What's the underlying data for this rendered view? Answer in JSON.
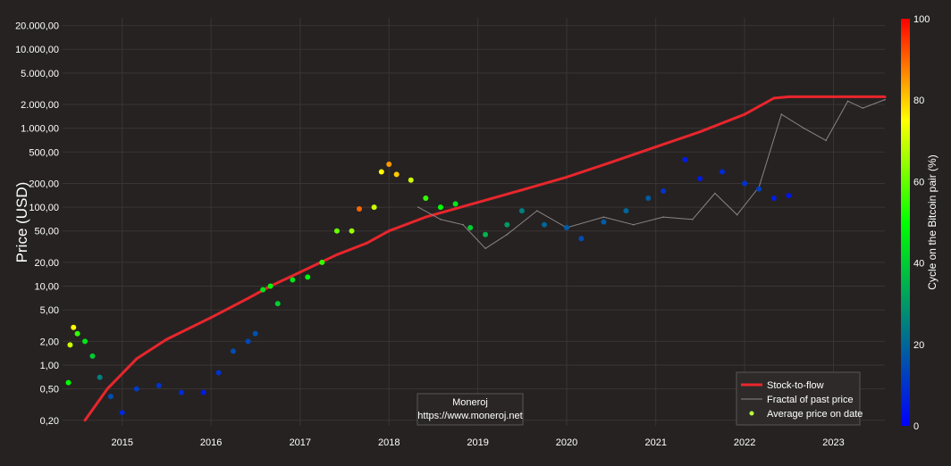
{
  "chart_data": {
    "type": "scatter",
    "title": "",
    "xlabel": "",
    "ylabel": "Price (USD)",
    "y_scale": "log",
    "ylim": [
      0.17,
      25000
    ],
    "xlim": [
      "2014-05-01",
      "2023-07-31"
    ],
    "x_ticks": [
      "2015",
      "2016",
      "2017",
      "2018",
      "2019",
      "2020",
      "2021",
      "2022",
      "2023"
    ],
    "y_ticks": [
      {
        "v": 0.2,
        "label": "0,20"
      },
      {
        "v": 0.5,
        "label": "0,50"
      },
      {
        "v": 1,
        "label": "1,00"
      },
      {
        "v": 2,
        "label": "2,00"
      },
      {
        "v": 5,
        "label": "5,00"
      },
      {
        "v": 10,
        "label": "10,00"
      },
      {
        "v": 20,
        "label": "20,00"
      },
      {
        "v": 50,
        "label": "50,00"
      },
      {
        "v": 100,
        "label": "100,00"
      },
      {
        "v": 200,
        "label": "200,00"
      },
      {
        "v": 500,
        "label": "500,00"
      },
      {
        "v": 1000,
        "label": "1.000,00"
      },
      {
        "v": 2000,
        "label": "2.000,00"
      },
      {
        "v": 5000,
        "label": "5.000,00"
      },
      {
        "v": 10000,
        "label": "10.000,00"
      },
      {
        "v": 20000,
        "label": "20.000,00"
      }
    ],
    "grid": true,
    "legend_position": "bottom-right",
    "colorbar": {
      "title": "Cycle on the Bitcoin pair (%)",
      "range": [
        0,
        100
      ],
      "ticks": [
        0,
        20,
        40,
        60,
        80,
        100
      ],
      "colors": [
        "#0000ff",
        "#008080",
        "#00ff00",
        "#ffff00",
        "#ff0000"
      ]
    },
    "annotation": {
      "line1": "Moneroj",
      "line2": "https://www.moneroj.net"
    },
    "series": [
      {
        "name": "Stock-to-flow",
        "style": "line",
        "color": "#e8262c",
        "points": [
          [
            "2014-08-01",
            0.2
          ],
          [
            "2014-11-01",
            0.5
          ],
          [
            "2015-03-01",
            1.2
          ],
          [
            "2015-07-01",
            2.1
          ],
          [
            "2016-01-01",
            4.0
          ],
          [
            "2016-06-01",
            7.0
          ],
          [
            "2016-09-01",
            10
          ],
          [
            "2017-01-01",
            15
          ],
          [
            "2017-06-01",
            25
          ],
          [
            "2017-10-01",
            35
          ],
          [
            "2018-01-01",
            50
          ],
          [
            "2018-06-01",
            75
          ],
          [
            "2019-01-01",
            115
          ],
          [
            "2019-07-01",
            165
          ],
          [
            "2020-01-01",
            240
          ],
          [
            "2020-07-01",
            370
          ],
          [
            "2021-01-01",
            580
          ],
          [
            "2021-07-01",
            900
          ],
          [
            "2022-01-01",
            1500
          ],
          [
            "2022-05-01",
            2400
          ],
          [
            "2022-07-01",
            2500
          ],
          [
            "2023-01-01",
            2500
          ],
          [
            "2023-07-31",
            2500
          ]
        ]
      },
      {
        "name": "Fractal of past price",
        "style": "line",
        "color": "#8a8585",
        "points": [
          [
            "2018-05-01",
            100
          ],
          [
            "2018-08-01",
            70
          ],
          [
            "2018-11-01",
            60
          ],
          [
            "2019-02-01",
            30
          ],
          [
            "2019-05-01",
            45
          ],
          [
            "2019-09-01",
            90
          ],
          [
            "2020-01-01",
            55
          ],
          [
            "2020-06-01",
            75
          ],
          [
            "2020-10-01",
            60
          ],
          [
            "2021-02-01",
            75
          ],
          [
            "2021-06-01",
            70
          ],
          [
            "2021-09-01",
            150
          ],
          [
            "2021-12-01",
            80
          ],
          [
            "2022-03-01",
            180
          ],
          [
            "2022-06-01",
            1500
          ],
          [
            "2022-09-01",
            1000
          ],
          [
            "2022-12-01",
            700
          ],
          [
            "2023-03-01",
            2200
          ],
          [
            "2023-05-01",
            1800
          ],
          [
            "2023-07-31",
            2300
          ]
        ]
      },
      {
        "name": "Average price on date",
        "style": "markers",
        "legend_color": "#b7ff3c",
        "points": [
          [
            "2014-05-25",
            0.6,
            50
          ],
          [
            "2014-06-01",
            1.8,
            70
          ],
          [
            "2014-06-15",
            3.0,
            75
          ],
          [
            "2014-07-01",
            2.5,
            55
          ],
          [
            "2014-08-01",
            2.0,
            45
          ],
          [
            "2014-09-01",
            1.3,
            40
          ],
          [
            "2014-10-01",
            0.7,
            25
          ],
          [
            "2014-11-15",
            0.4,
            15
          ],
          [
            "2015-01-01",
            0.25,
            8
          ],
          [
            "2015-03-01",
            0.5,
            12
          ],
          [
            "2015-06-01",
            0.55,
            10
          ],
          [
            "2015-09-01",
            0.45,
            8
          ],
          [
            "2015-12-01",
            0.45,
            5
          ],
          [
            "2016-02-01",
            0.8,
            10
          ],
          [
            "2016-04-01",
            1.5,
            15
          ],
          [
            "2016-06-01",
            2.0,
            14
          ],
          [
            "2016-07-01",
            2.5,
            16
          ],
          [
            "2016-08-01",
            9,
            45
          ],
          [
            "2016-09-01",
            10,
            50
          ],
          [
            "2016-10-01",
            6,
            40
          ],
          [
            "2016-12-01",
            12,
            45
          ],
          [
            "2017-02-01",
            13,
            48
          ],
          [
            "2017-04-01",
            20,
            55
          ],
          [
            "2017-06-01",
            50,
            60
          ],
          [
            "2017-08-01",
            50,
            65
          ],
          [
            "2017-09-01",
            95,
            90
          ],
          [
            "2017-11-01",
            100,
            70
          ],
          [
            "2017-12-01",
            280,
            75
          ],
          [
            "2018-01-01",
            350,
            85
          ],
          [
            "2018-02-01",
            260,
            80
          ],
          [
            "2018-04-01",
            220,
            70
          ],
          [
            "2018-06-01",
            130,
            55
          ],
          [
            "2018-08-01",
            100,
            50
          ],
          [
            "2018-10-01",
            110,
            45
          ],
          [
            "2018-12-01",
            55,
            40
          ],
          [
            "2019-02-01",
            45,
            35
          ],
          [
            "2019-05-01",
            60,
            30
          ],
          [
            "2019-07-01",
            90,
            25
          ],
          [
            "2019-10-01",
            60,
            20
          ],
          [
            "2020-01-01",
            55,
            18
          ],
          [
            "2020-03-01",
            40,
            15
          ],
          [
            "2020-06-01",
            65,
            18
          ],
          [
            "2020-09-01",
            90,
            20
          ],
          [
            "2020-12-01",
            130,
            18
          ],
          [
            "2021-02-01",
            160,
            10
          ],
          [
            "2021-05-01",
            400,
            5
          ],
          [
            "2021-07-01",
            230,
            5
          ],
          [
            "2021-10-01",
            280,
            8
          ],
          [
            "2022-01-01",
            200,
            10
          ],
          [
            "2022-03-01",
            170,
            12
          ],
          [
            "2022-05-01",
            130,
            6
          ],
          [
            "2022-07-01",
            140,
            4
          ]
        ]
      }
    ]
  }
}
